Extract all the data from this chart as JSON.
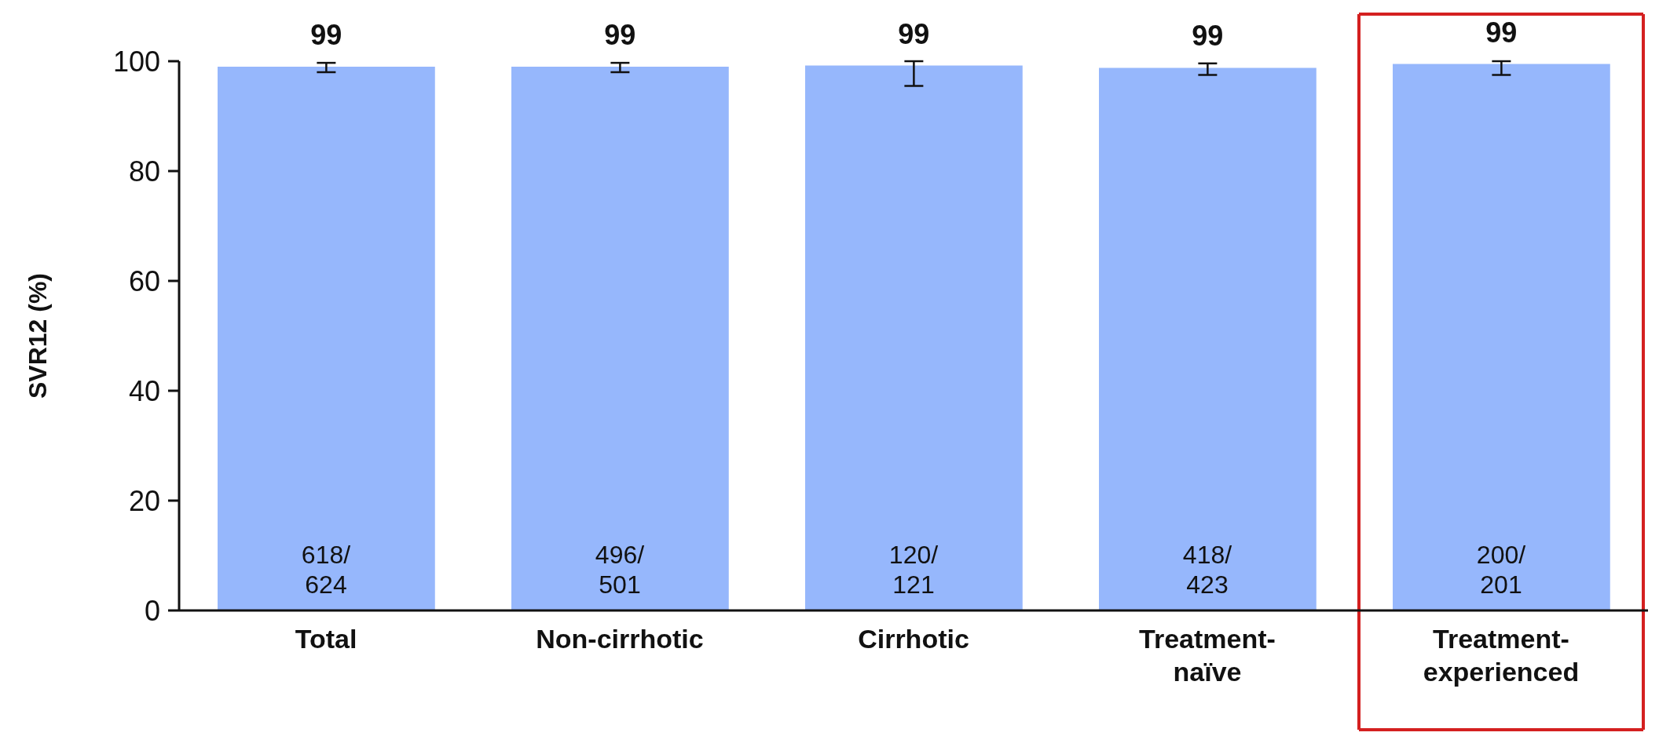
{
  "chart_data": {
    "type": "bar",
    "ylabel": "SVR12 (%)",
    "categories": [
      "Total",
      "Non-cirrhotic",
      "Cirrhotic",
      "Treatment-naïve",
      "Treatment-experienced"
    ],
    "values": [
      99.0,
      99.0,
      99.2,
      98.8,
      99.5
    ],
    "value_labels": [
      "99",
      "99",
      "99",
      "99",
      "99"
    ],
    "errors": [
      [
        98.0,
        99.7
      ],
      [
        98.0,
        99.7
      ],
      [
        95.5,
        100
      ],
      [
        97.5,
        99.6
      ],
      [
        97.5,
        100
      ]
    ],
    "color": "#96b7fc",
    "ylim": [
      0,
      100
    ],
    "yticks": [
      0,
      20,
      40,
      60,
      80,
      100
    ],
    "grid": false,
    "legend": false,
    "annotations": [
      "618/\n624",
      "496/\n501",
      "120/\n121",
      "418/\n423",
      "200/\n201"
    ]
  }
}
